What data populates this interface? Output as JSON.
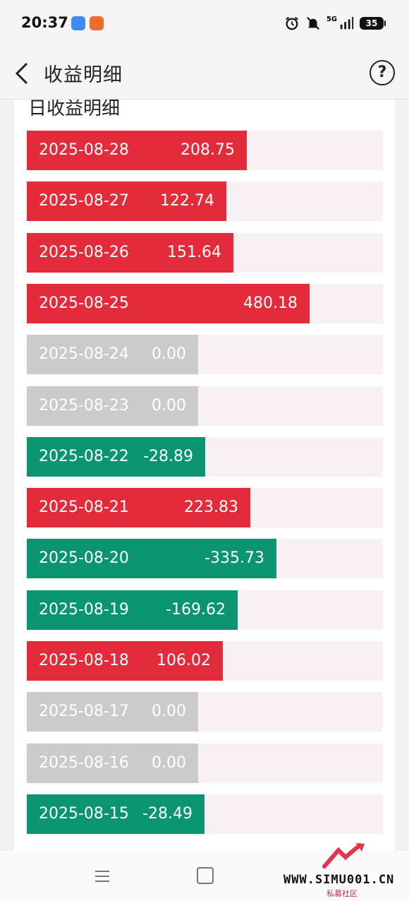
{
  "status_bar": {
    "time": "20:37",
    "network": "5G",
    "battery": "35"
  },
  "header": {
    "title": "收益明细",
    "help_label": "?"
  },
  "section_title": "日收益明细",
  "colors": {
    "positive": "#e42b3c",
    "negative": "#0a9570",
    "zero": "#cbcbcb",
    "track": "#f7f1f4"
  },
  "rows": [
    {
      "date": "2025-08-28",
      "value": "208.75",
      "state": "positive"
    },
    {
      "date": "2025-08-27",
      "value": "122.74",
      "state": "positive"
    },
    {
      "date": "2025-08-26",
      "value": "151.64",
      "state": "positive"
    },
    {
      "date": "2025-08-25",
      "value": "480.18",
      "state": "positive"
    },
    {
      "date": "2025-08-24",
      "value": "0.00",
      "state": "zero"
    },
    {
      "date": "2025-08-23",
      "value": "0.00",
      "state": "zero"
    },
    {
      "date": "2025-08-22",
      "value": "-28.89",
      "state": "negative"
    },
    {
      "date": "2025-08-21",
      "value": "223.83",
      "state": "positive"
    },
    {
      "date": "2025-08-20",
      "value": "-335.73",
      "state": "negative"
    },
    {
      "date": "2025-08-19",
      "value": "-169.62",
      "state": "negative"
    },
    {
      "date": "2025-08-18",
      "value": "106.02",
      "state": "positive"
    },
    {
      "date": "2025-08-17",
      "value": "0.00",
      "state": "zero"
    },
    {
      "date": "2025-08-16",
      "value": "0.00",
      "state": "zero"
    },
    {
      "date": "2025-08-15",
      "value": "-28.49",
      "state": "negative"
    }
  ],
  "watermark": {
    "text": "WWW.SIMU001.CN",
    "sub": "私募社区"
  }
}
